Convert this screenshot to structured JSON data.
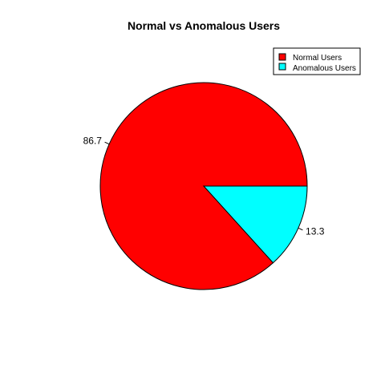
{
  "chart_data": {
    "type": "pie",
    "title": "Normal vs Anomalous Users",
    "slices": [
      {
        "name": "Normal Users",
        "value": 86.7,
        "label": "86.7",
        "color": "#FF0000"
      },
      {
        "name": "Anomalous Users",
        "value": 13.3,
        "label": "13.3",
        "color": "#00FFFF"
      }
    ],
    "legend": {
      "position": "top-right",
      "entries": [
        "Normal Users",
        "Anomalous Users"
      ]
    },
    "start_angle": "0 degrees (3 o'clock), counter-clockwise",
    "border_color": "#000000"
  }
}
